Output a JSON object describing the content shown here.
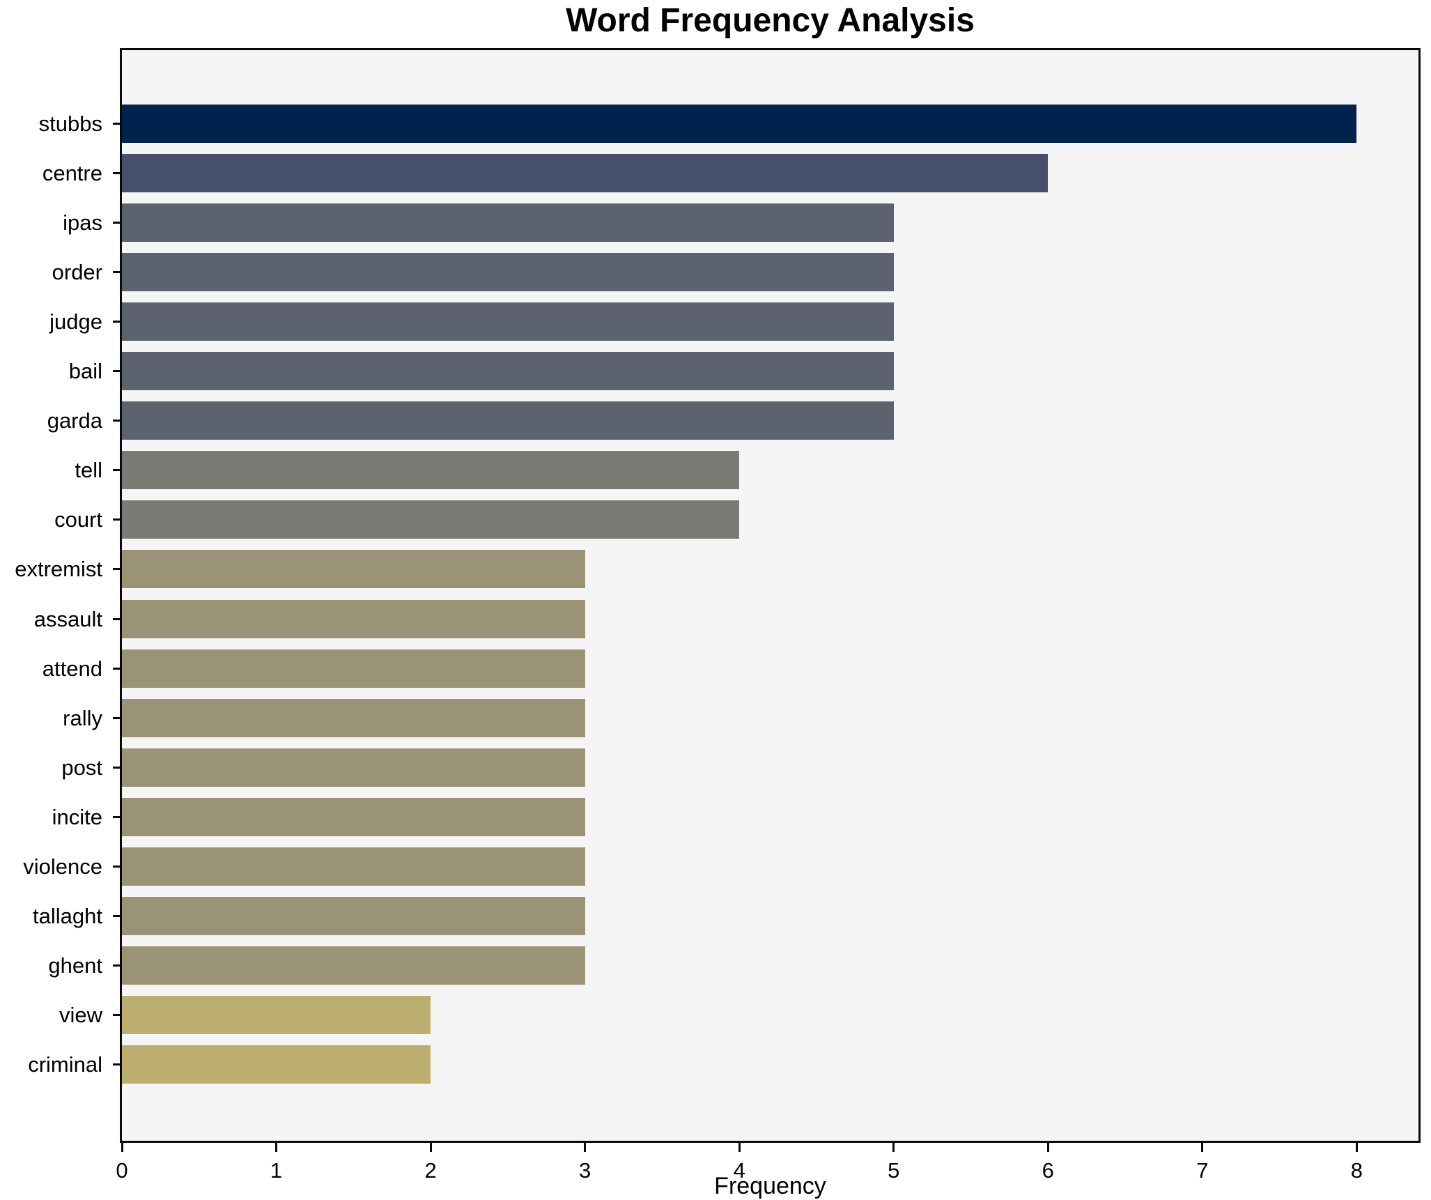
{
  "title": "Word Frequency Analysis",
  "chart_data": {
    "type": "bar",
    "orientation": "horizontal",
    "title": "Word Frequency Analysis",
    "xlabel": "Frequency",
    "ylabel": "",
    "xlim": [
      0,
      8.4
    ],
    "xticks": [
      0,
      1,
      2,
      3,
      4,
      5,
      6,
      7,
      8
    ],
    "grid": false,
    "legend": "none",
    "plot_background": "#f6f5f5",
    "figure_background": "#ffffff",
    "categories": [
      "stubbs",
      "centre",
      "ipas",
      "order",
      "judge",
      "bail",
      "garda",
      "tell",
      "court",
      "extremist",
      "assault",
      "attend",
      "rally",
      "post",
      "incite",
      "violence",
      "tallaght",
      "ghent",
      "view",
      "criminal"
    ],
    "values": [
      8,
      6,
      5,
      5,
      5,
      5,
      5,
      4,
      4,
      3,
      3,
      3,
      3,
      3,
      3,
      3,
      3,
      3,
      2,
      2
    ],
    "bar_colors": [
      "#00224e",
      "#45506b",
      "#5c626e",
      "#5c626e",
      "#5c626e",
      "#5c626e",
      "#5c626e",
      "#7b7a74",
      "#7b7a74",
      "#9a9375",
      "#9a9375",
      "#9a9375",
      "#9a9375",
      "#9a9375",
      "#9a9375",
      "#9a9375",
      "#9a9375",
      "#9a9375",
      "#bcae6e",
      "#bcae6e"
    ]
  }
}
